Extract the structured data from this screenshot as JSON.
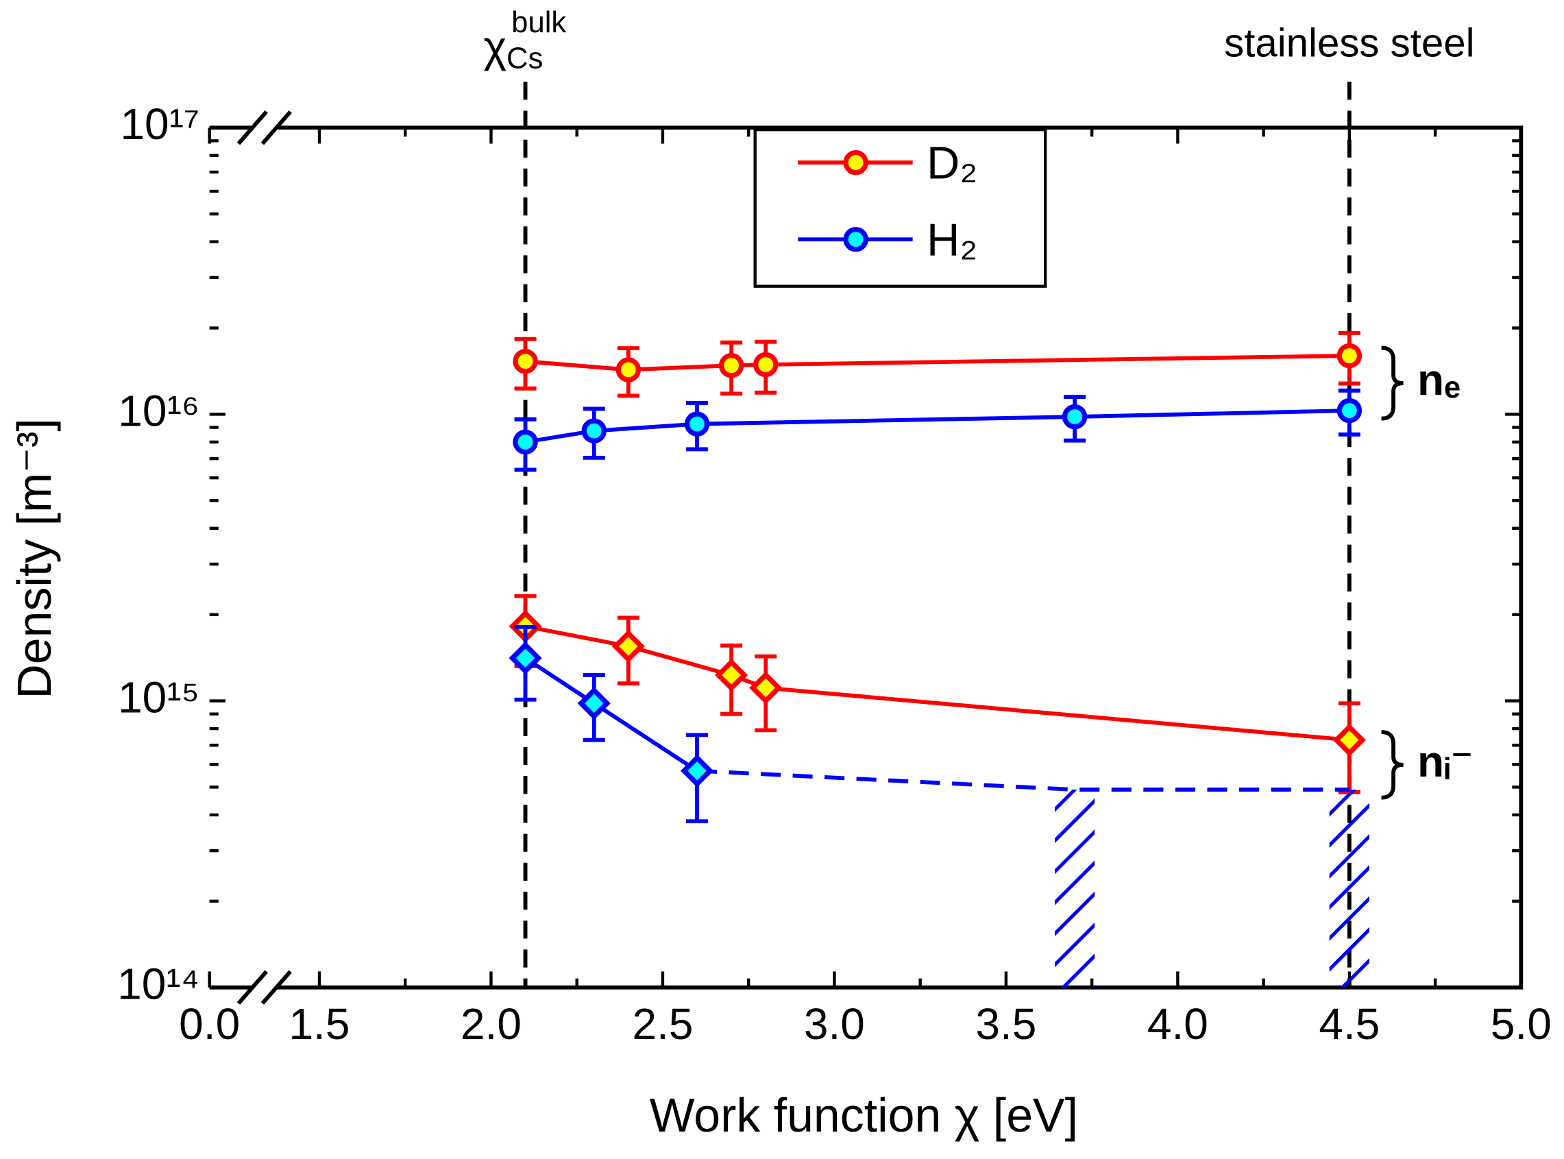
{
  "chart_data": {
    "type": "scatter",
    "xlabel": "Work function χ [eV]",
    "ylabel": "Density [m⁻³]",
    "xlim": [
      0,
      5.0
    ],
    "x_break": 1.18,
    "xticks": [
      {
        "value": 0,
        "label": "0.0"
      },
      1.5,
      {
        "value": 2,
        "label": "2.0"
      },
      2.5,
      {
        "value": 3,
        "label": "3.0"
      },
      3.5,
      {
        "value": 4,
        "label": "4.0"
      },
      4.5,
      {
        "value": 5,
        "label": "5.0"
      }
    ],
    "ylim": [
      100000000000000.0,
      1e+17
    ],
    "ylog": true,
    "yticks": [
      {
        "value": 100000000000000.0,
        "label": "10¹⁴"
      },
      {
        "value": 1000000000000000.0,
        "label": "10¹⁵"
      },
      {
        "value": 1e+16,
        "label": "10¹⁶"
      },
      {
        "value": 1e+17,
        "label": "10¹⁷"
      }
    ],
    "minor_ticks": true,
    "legend": "top",
    "series": [
      {
        "name": "D₂",
        "color": "#ff0000",
        "fill": "#ffff00",
        "ne": {
          "x": [
            2.1,
            2.4,
            2.7,
            2.8,
            4.5
          ],
          "values": [
            1.53e+16,
            1.43e+16,
            1.48e+16,
            1.49e+16,
            1.6e+16
          ],
          "errors": [
            3000000000000000.0,
            2700000000000000.0,
            3000000000000000.0,
            3000000000000000.0,
            3200000000000000.0
          ]
        },
        "ni": {
          "x": [
            2.1,
            2.4,
            2.7,
            2.8,
            4.5
          ],
          "values": [
            1820000000000000.0,
            1550000000000000.0,
            1230000000000000.0,
            1110000000000000.0,
            730000000000000.0
          ],
          "errors": [
            500000000000000.0,
            400000000000000.0,
            330000000000000.0,
            320000000000000.0,
            250000000000000.0
          ]
        }
      },
      {
        "name": "H₂",
        "color": "#0000ff",
        "fill": "#00ffff",
        "ne": {
          "x": [
            2.1,
            2.3,
            2.6,
            3.7,
            4.5
          ],
          "values": [
            8000000000000000.0,
            8750000000000000.0,
            9250000000000000.0,
            9800000000000000.0,
            1.03e+16
          ],
          "errors": [
            1600000000000000.0,
            1700000000000000.0,
            1700000000000000.0,
            1700000000000000.0,
            1800000000000000.0
          ]
        },
        "ni": {
          "x": [
            2.1,
            2.3,
            2.6
          ],
          "values": [
            1410000000000000.0,
            980000000000000.0,
            570000000000000.0
          ],
          "errors": [
            400000000000000.0,
            250000000000000.0,
            190000000000000.0
          ],
          "upper_limit": {
            "x": [
              3.7,
              4.5
            ],
            "values": [
              490000000000000.0,
              490000000000000.0
            ]
          }
        }
      }
    ],
    "vlines": [
      {
        "x": 2.1,
        "symbol": "χ",
        "sub": "Cs",
        "sup": "bulk"
      },
      {
        "x": 4.5,
        "label": "stainless steel"
      }
    ],
    "group_labels": [
      {
        "label": "nₑ",
        "range": [
          1.03e+16,
          1.6e+16
        ]
      },
      {
        "label": "nᵢ⁻",
        "range": [
          490000000000000.0,
          730000000000000.0
        ]
      }
    ]
  }
}
